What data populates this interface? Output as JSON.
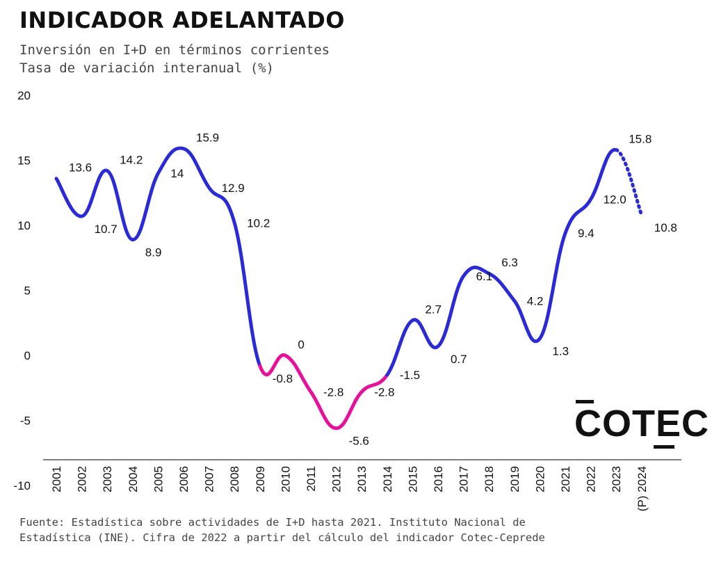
{
  "title": "INDICADOR ADELANTADO",
  "subtitle_line1": "Inversión en I+D en términos corrientes",
  "subtitle_line2": "Tasa de variación interanual (%)",
  "source_line1": "Fuente: Estadística sobre actividades de I+D hasta 2021. Instituto Nacional de",
  "source_line2": "Estadística (INE). Cifra de 2022 a partir del cálculo del indicador Cotec-Ceprede",
  "logo_text": "COTEC",
  "chart_data": {
    "type": "line",
    "categories": [
      "2001",
      "2002",
      "2003",
      "2004",
      "2005",
      "2006",
      "2007",
      "2008",
      "2009",
      "2010",
      "2011",
      "2012",
      "2013",
      "2014",
      "2015",
      "2016",
      "2017",
      "2018",
      "2019",
      "2020",
      "2021",
      "2022",
      "2023",
      "(P) 2024"
    ],
    "values": [
      13.6,
      10.7,
      14.2,
      8.9,
      14,
      15.9,
      12.9,
      10.2,
      -0.8,
      0,
      -2.8,
      -5.6,
      -2.8,
      -1.5,
      2.7,
      0.7,
      6.1,
      6.3,
      4.2,
      1.3,
      9.4,
      12.0,
      15.8,
      10.8
    ],
    "labels": [
      "13.6",
      "10.7",
      "14.2",
      "8.9",
      "14",
      "15.9",
      "12.9",
      "10.2",
      "-0.8",
      "0",
      "-2.8",
      "-5.6",
      "-2.8",
      "-1.5",
      "2.7",
      "0.7",
      "6.1",
      "6.3",
      "4.2",
      "1.3",
      "9.4",
      "12.0",
      "15.8",
      "10.8"
    ],
    "y_ticks": [
      "20",
      "15",
      "10",
      "5",
      "0",
      "-5",
      "-10"
    ],
    "ylim": [
      -10,
      20
    ],
    "grid": false,
    "colors": {
      "line": "#2a2ad6",
      "crisis": "#e6109b",
      "text": "#111111",
      "axis": "#555555"
    },
    "crisis_range": [
      "2009",
      "2014"
    ],
    "projection_from": "2023"
  }
}
